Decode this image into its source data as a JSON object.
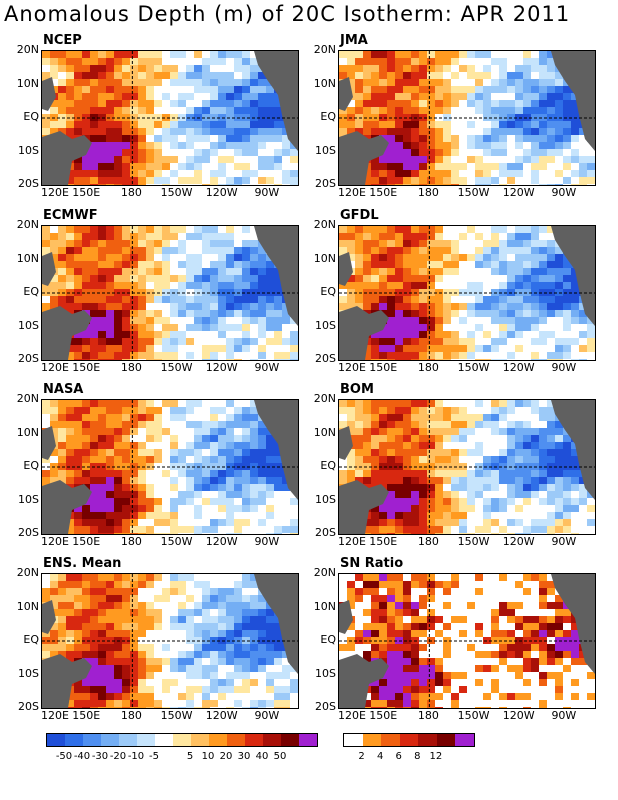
{
  "title": "Anomalous Depth (m) of 20C Isotherm: APR 2011",
  "x_ticks": [
    "120E",
    "150E",
    "180",
    "150W",
    "120W",
    "90W"
  ],
  "y_ticks": [
    "20N",
    "10N",
    "EQ",
    "10S",
    "20S"
  ],
  "colors": {
    "anomaly": [
      "#1f4fd8",
      "#2f6fe8",
      "#4f8ff0",
      "#74aef4",
      "#9ccaf8",
      "#c6e4fc",
      "#ffffff",
      "#ffe7a0",
      "#ffc060",
      "#ff9a20",
      "#f06010",
      "#d82810",
      "#a81008",
      "#780000",
      "#a020d0"
    ],
    "sn": [
      "#ffffff",
      "#ff9a20",
      "#f06010",
      "#d82810",
      "#a81008",
      "#780000",
      "#a020d0"
    ],
    "land": "#606060"
  },
  "chart_data": [
    {
      "type": "heatmap",
      "title": "NCEP",
      "pattern": "warm west Pacific, strongest near 150E 10S; cool eastern equatorial band"
    },
    {
      "type": "heatmap",
      "title": "JMA",
      "pattern": "warm west Pacific, strongest near 150E 10S; cool eastern band"
    },
    {
      "type": "heatmap",
      "title": "ECMWF",
      "pattern": "warm west, patchy cool east"
    },
    {
      "type": "heatmap",
      "title": "GFDL",
      "pattern": "warm west, cool east"
    },
    {
      "type": "heatmap",
      "title": "NASA",
      "pattern": "warm west, cool east"
    },
    {
      "type": "heatmap",
      "title": "BOM",
      "pattern": "warm west, cool east"
    },
    {
      "type": "heatmap",
      "title": "ENS. Mean",
      "pattern": "warm west, cool east"
    },
    {
      "type": "heatmap",
      "title": "SN Ratio",
      "pattern": "high signal-to-noise in west and south-east"
    }
  ],
  "colorbar_anomaly": {
    "labels": [
      "-50",
      "-40",
      "-30",
      "-20",
      "-10",
      "-5",
      "5",
      "10",
      "20",
      "30",
      "40",
      "50"
    ]
  },
  "colorbar_sn": {
    "labels": [
      "2",
      "4",
      "6",
      "8",
      "12"
    ]
  }
}
